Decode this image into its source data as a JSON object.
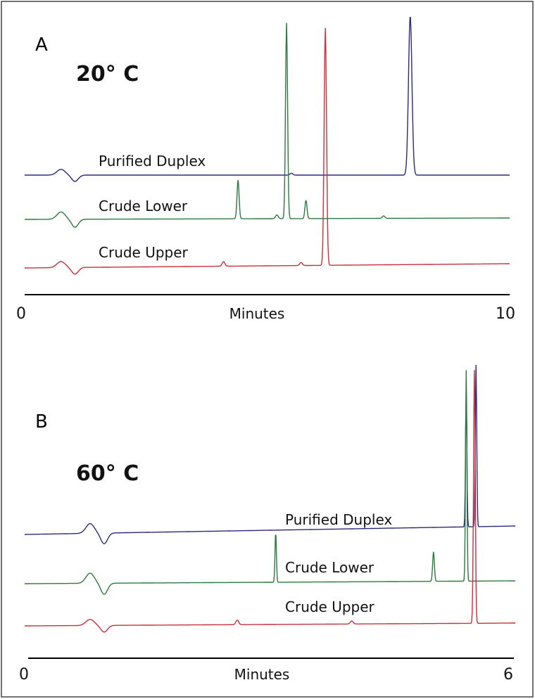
{
  "chart_data": [
    {
      "type": "line",
      "panel_label": "A",
      "temperature_label": "20° C",
      "xlabel": "Minutes",
      "xlim": [
        0,
        10
      ],
      "x_tick_labels": [
        "0",
        "10"
      ],
      "series": [
        {
          "name": "Purified Duplex",
          "color": "#2b2a7e",
          "peaks": [
            {
              "x": 7.95,
              "height": 1.0,
              "width": 0.05
            }
          ],
          "features": [
            {
              "x": 0.75,
              "kind": "injection-artifact",
              "amplitude": 0.06
            },
            {
              "x": 5.5,
              "kind": "minor-peak",
              "amplitude": 0.02
            }
          ]
        },
        {
          "name": "Crude Lower",
          "color": "#2b7a3e",
          "peaks": [
            {
              "x": 4.4,
              "height": 0.19,
              "width": 0.03
            },
            {
              "x": 5.4,
              "height": 0.96,
              "width": 0.03
            },
            {
              "x": 5.8,
              "height": 0.09,
              "width": 0.03
            }
          ],
          "features": [
            {
              "x": 0.75,
              "kind": "injection-artifact",
              "amplitude": 0.06
            },
            {
              "x": 5.2,
              "kind": "minor-peak",
              "amplitude": 0.03
            },
            {
              "x": 7.4,
              "kind": "minor-peak",
              "amplitude": 0.02
            }
          ]
        },
        {
          "name": "Crude Upper",
          "color": "#c8303a",
          "peaks": [
            {
              "x": 6.2,
              "height": 0.94,
              "width": 0.035
            }
          ],
          "features": [
            {
              "x": 0.75,
              "kind": "injection-artifact",
              "amplitude": 0.04
            },
            {
              "x": 4.1,
              "kind": "minor-peak",
              "amplitude": 0.03
            },
            {
              "x": 5.7,
              "kind": "minor-peak",
              "amplitude": 0.02
            }
          ]
        }
      ]
    },
    {
      "type": "line",
      "panel_label": "B",
      "temperature_label": "60° C",
      "xlabel": "Minutes",
      "xlim": [
        0,
        6
      ],
      "x_tick_labels": [
        "0",
        "6"
      ],
      "series": [
        {
          "name": "Purified Duplex",
          "color": "#2b2a7e",
          "peaks": [
            {
              "x": 5.4,
              "height": 0.82,
              "width": 0.02
            },
            {
              "x": 5.52,
              "height": 1.0,
              "width": 0.02
            }
          ],
          "features": [
            {
              "x": 0.8,
              "kind": "injection-artifact",
              "amplitude": 0.1
            }
          ]
        },
        {
          "name": "Crude Lower",
          "color": "#2b7a3e",
          "peaks": [
            {
              "x": 3.07,
              "height": 0.24,
              "width": 0.02
            },
            {
              "x": 5.0,
              "height": 0.14,
              "width": 0.025
            },
            {
              "x": 5.4,
              "height": 1.0,
              "width": 0.02
            }
          ],
          "features": [
            {
              "x": 0.8,
              "kind": "injection-artifact",
              "amplitude": 0.08
            }
          ]
        },
        {
          "name": "Crude Upper",
          "color": "#c8303a",
          "peaks": [
            {
              "x": 5.5,
              "height": 1.0,
              "width": 0.025
            }
          ],
          "features": [
            {
              "x": 0.8,
              "kind": "injection-artifact",
              "amplitude": 0.04
            },
            {
              "x": 2.6,
              "kind": "minor-peak",
              "amplitude": 0.03
            },
            {
              "x": 4.0,
              "kind": "minor-peak",
              "amplitude": 0.02
            }
          ]
        }
      ]
    }
  ]
}
